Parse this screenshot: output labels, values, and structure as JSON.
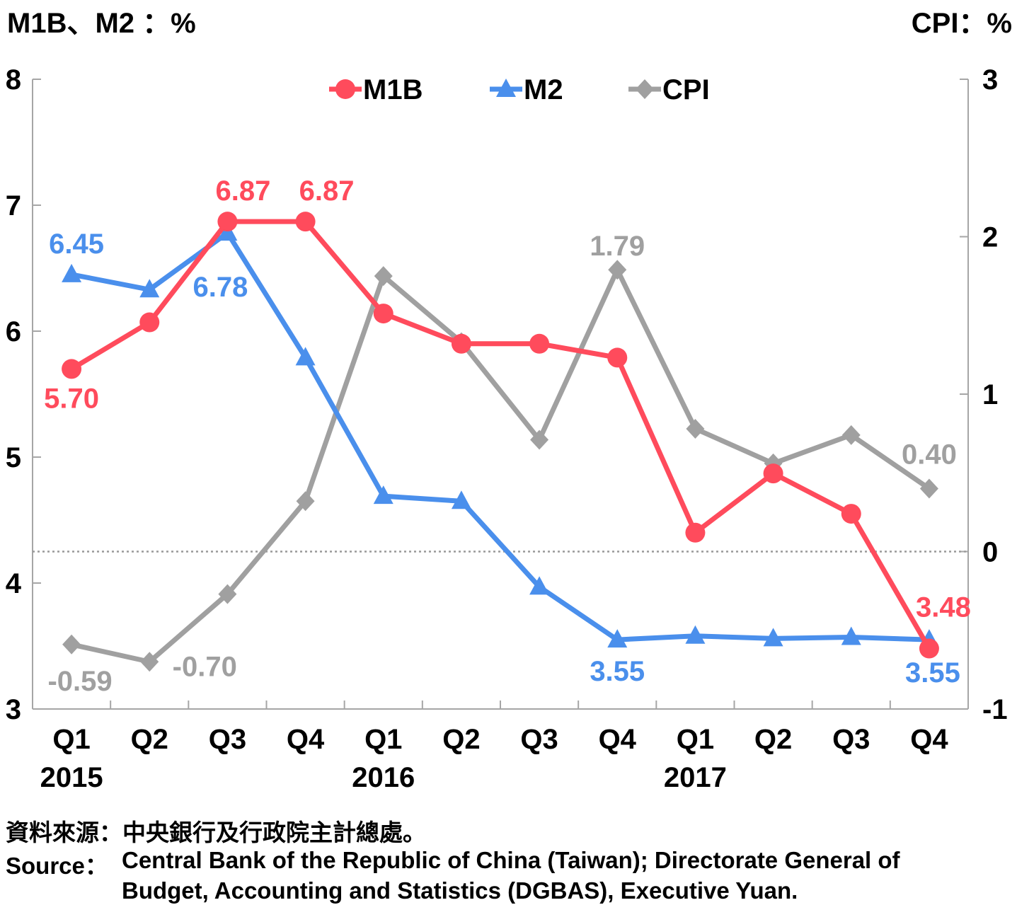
{
  "chart_data": {
    "type": "line",
    "left_axis_title": "M1B、M2 ：%",
    "right_axis_title": "CPI：%",
    "left_ylim": [
      3,
      8
    ],
    "left_ticks": [
      "3",
      "4",
      "5",
      "6",
      "7",
      "8"
    ],
    "right_ylim": [
      -1,
      3
    ],
    "right_ticks": [
      "-1",
      "0",
      "1",
      "2",
      "3"
    ],
    "categories": [
      "Q1",
      "Q2",
      "Q3",
      "Q4",
      "Q1",
      "Q2",
      "Q3",
      "Q4",
      "Q1",
      "Q2",
      "Q3",
      "Q4"
    ],
    "years": [
      {
        "label": "2015",
        "index": 0
      },
      {
        "label": "2016",
        "index": 4
      },
      {
        "label": "2017",
        "index": 8
      }
    ],
    "legend_position": "top-center",
    "reference_line": {
      "axis": "right",
      "value": 0,
      "style": "dotted"
    },
    "series": [
      {
        "name": "M1B",
        "axis": "left",
        "color": "#ff4b5c",
        "marker": "circle",
        "values": [
          5.7,
          6.07,
          6.87,
          6.87,
          6.14,
          5.9,
          5.9,
          5.79,
          4.4,
          4.87,
          4.55,
          3.48
        ],
        "labels": [
          {
            "i": 0,
            "text": "5.70"
          },
          {
            "i": 2,
            "text": "6.87"
          },
          {
            "i": 3,
            "text": "6.87"
          },
          {
            "i": 11,
            "text": "3.48"
          }
        ]
      },
      {
        "name": "M2",
        "axis": "left",
        "color": "#4a8fec",
        "marker": "triangle",
        "values": [
          6.45,
          6.33,
          6.78,
          5.79,
          4.69,
          4.65,
          3.97,
          3.55,
          3.58,
          3.56,
          3.57,
          3.55
        ],
        "labels": [
          {
            "i": 0,
            "text": "6.45"
          },
          {
            "i": 2,
            "text": "6.78"
          },
          {
            "i": 7,
            "text": "3.55"
          },
          {
            "i": 11,
            "text": "3.55"
          }
        ]
      },
      {
        "name": "CPI",
        "axis": "right",
        "color": "#a0a0a0",
        "marker": "diamond",
        "values": [
          -0.59,
          -0.7,
          -0.27,
          0.32,
          1.75,
          1.33,
          0.71,
          1.79,
          0.78,
          0.56,
          0.74,
          0.4
        ],
        "labels": [
          {
            "i": 0,
            "text": "-0.59"
          },
          {
            "i": 1,
            "text": "-0.70"
          },
          {
            "i": 7,
            "text": "1.79"
          },
          {
            "i": 11,
            "text": "0.40"
          }
        ]
      }
    ]
  },
  "source": {
    "zh": "資料來源：中央銀行及行政院主計總處。",
    "en_label": "Source：",
    "en_line1": "Central Bank of the Republic of China (Taiwan); Directorate General of",
    "en_line2": "Budget, Accounting and Statistics (DGBAS), Executive Yuan."
  }
}
